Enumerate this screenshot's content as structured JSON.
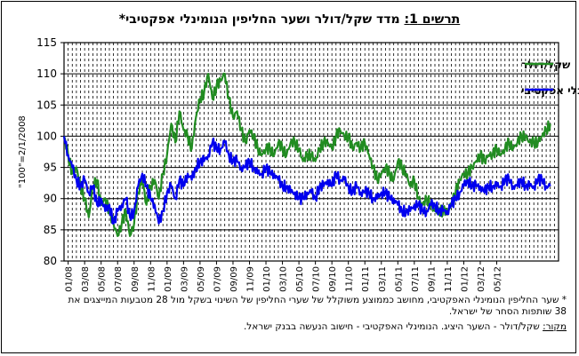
{
  "title": {
    "label": "תרשים 1:",
    "text": " מדד שקל/דולר ושער החליפין הנומינלי אפקטיבי*"
  },
  "footnote": {
    "line1": "* שער החליפין הנומינלי האפקטיבי, מחושב כממוצע משוקלל של שערי החליפין של השינוי בשקל מול 28 מטבעות המייצגים את",
    "line2": "38 שותפות הסחר של ישראל.",
    "source_label": "מקור:",
    "source_text": " שקל/דולר - השער היציג. הנומינלי האפקטיבי - חישוב הנעשה בבנק ישראל."
  },
  "colors": {
    "ils_usd": "#218c21",
    "effective": "#0000ee",
    "grid": "#000000",
    "plot_bg": "#ffffff"
  },
  "chart_data": {
    "type": "line",
    "ylabel": "\"100\"=2/1/2008",
    "ylim": [
      80,
      115
    ],
    "yticks": [
      80,
      85,
      90,
      95,
      100,
      105,
      110,
      115
    ],
    "xlim": [
      0,
      60
    ],
    "x_tick_labels": [
      "01/08",
      "03/08",
      "05/08",
      "07/08",
      "09/08",
      "11/08",
      "01/09",
      "03/09",
      "05/09",
      "07/09",
      "09/09",
      "11/09",
      "01/10",
      "03/10",
      "05/10",
      "07/10",
      "09/10",
      "11/10",
      "01/11",
      "03/11",
      "05/11",
      "07/11",
      "09/11",
      "11/11",
      "01/12",
      "03/12",
      "05/12"
    ],
    "legend_position": "top-right",
    "series": [
      {
        "name": "שקל/דולר",
        "points": [
          [
            0,
            100
          ],
          [
            0.5,
            97
          ],
          [
            1,
            94
          ],
          [
            1.5,
            95
          ],
          [
            2,
            92
          ],
          [
            2.5,
            90
          ],
          [
            3,
            87
          ],
          [
            3.5,
            92
          ],
          [
            4,
            93
          ],
          [
            4.5,
            89
          ],
          [
            5,
            90
          ],
          [
            5.5,
            88
          ],
          [
            6,
            86
          ],
          [
            6.5,
            84
          ],
          [
            7,
            86
          ],
          [
            7.5,
            88
          ],
          [
            8,
            84
          ],
          [
            8.5,
            86
          ],
          [
            9,
            91
          ],
          [
            9.5,
            93
          ],
          [
            10,
            89
          ],
          [
            10.5,
            92
          ],
          [
            11,
            93
          ],
          [
            11.5,
            90
          ],
          [
            12,
            94
          ],
          [
            12.5,
            97
          ],
          [
            13,
            102
          ],
          [
            13.5,
            99
          ],
          [
            14,
            104
          ],
          [
            14.5,
            101
          ],
          [
            15,
            100
          ],
          [
            15.5,
            98
          ],
          [
            16,
            103
          ],
          [
            16.5,
            106
          ],
          [
            17,
            107
          ],
          [
            17.5,
            110
          ],
          [
            18,
            106
          ],
          [
            18.5,
            108
          ],
          [
            19,
            109
          ],
          [
            19.5,
            110
          ],
          [
            20,
            106
          ],
          [
            20.5,
            103
          ],
          [
            21,
            104
          ],
          [
            21.5,
            101
          ],
          [
            22,
            99
          ],
          [
            22.5,
            101
          ],
          [
            23,
            100
          ],
          [
            23.5,
            98
          ],
          [
            24,
            97
          ],
          [
            24.5,
            98
          ],
          [
            25,
            98
          ],
          [
            25.5,
            97
          ],
          [
            26,
            99
          ],
          [
            26.5,
            98
          ],
          [
            27,
            97
          ],
          [
            27.5,
            99
          ],
          [
            28,
            99
          ],
          [
            28.5,
            98
          ],
          [
            29,
            96
          ],
          [
            29.5,
            97
          ],
          [
            30,
            97
          ],
          [
            30.5,
            96
          ],
          [
            31,
            98
          ],
          [
            31.5,
            99
          ],
          [
            32,
            99
          ],
          [
            32.5,
            98
          ],
          [
            33,
            100
          ],
          [
            33.5,
            101
          ],
          [
            34,
            100
          ],
          [
            34.5,
            100
          ],
          [
            35,
            98
          ],
          [
            35.5,
            99
          ],
          [
            36,
            98
          ],
          [
            36.5,
            99
          ],
          [
            37,
            97
          ],
          [
            37.5,
            95
          ],
          [
            38,
            93
          ],
          [
            38.5,
            94
          ],
          [
            39,
            95
          ],
          [
            39.5,
            94
          ],
          [
            40,
            93
          ],
          [
            40.5,
            96
          ],
          [
            41,
            95
          ],
          [
            41.5,
            94
          ],
          [
            42,
            92
          ],
          [
            42.5,
            93
          ],
          [
            43,
            90
          ],
          [
            43.5,
            89
          ],
          [
            44,
            90
          ],
          [
            44.5,
            89
          ],
          [
            45,
            88
          ],
          [
            45.5,
            88
          ],
          [
            46,
            88
          ],
          [
            46.5,
            88
          ],
          [
            47,
            89
          ],
          [
            47.5,
            91
          ],
          [
            48,
            93
          ],
          [
            48.5,
            94
          ],
          [
            49,
            94
          ],
          [
            49.5,
            95
          ],
          [
            50,
            96
          ],
          [
            50.5,
            97
          ],
          [
            51,
            96
          ],
          [
            51.5,
            97
          ],
          [
            52,
            97
          ],
          [
            52.5,
            98
          ],
          [
            53,
            97
          ],
          [
            53.5,
            98
          ],
          [
            54,
            99
          ],
          [
            54.5,
            98
          ],
          [
            55,
            99
          ],
          [
            55.5,
            100
          ],
          [
            56,
            100
          ],
          [
            56.5,
            99
          ],
          [
            57,
            99
          ],
          [
            57.5,
            99
          ],
          [
            58,
            100
          ],
          [
            58.5,
            101
          ],
          [
            59,
            102
          ]
        ]
      },
      {
        "name": "נומינלי אפקטיבי",
        "points": [
          [
            0,
            100
          ],
          [
            0.5,
            97
          ],
          [
            1,
            95
          ],
          [
            1.5,
            93
          ],
          [
            2,
            92
          ],
          [
            2.5,
            93
          ],
          [
            3,
            91
          ],
          [
            3.5,
            92
          ],
          [
            4,
            89
          ],
          [
            4.5,
            90
          ],
          [
            5,
            88
          ],
          [
            5.5,
            89
          ],
          [
            6,
            86
          ],
          [
            6.5,
            88
          ],
          [
            7,
            89
          ],
          [
            7.5,
            90
          ],
          [
            8,
            87
          ],
          [
            8.5,
            88
          ],
          [
            9,
            92
          ],
          [
            9.5,
            94
          ],
          [
            10,
            92
          ],
          [
            10.5,
            90
          ],
          [
            11,
            89
          ],
          [
            11.5,
            86
          ],
          [
            12,
            88
          ],
          [
            12.5,
            91
          ],
          [
            13,
            92
          ],
          [
            13.5,
            90
          ],
          [
            14,
            93
          ],
          [
            14.5,
            92
          ],
          [
            15,
            94
          ],
          [
            15.5,
            93
          ],
          [
            16,
            95
          ],
          [
            16.5,
            96
          ],
          [
            17,
            96
          ],
          [
            17.5,
            97
          ],
          [
            18,
            99
          ],
          [
            18.5,
            98
          ],
          [
            19,
            98
          ],
          [
            19.5,
            99
          ],
          [
            20,
            97
          ],
          [
            20.5,
            96
          ],
          [
            21,
            96
          ],
          [
            21.5,
            95
          ],
          [
            22,
            95
          ],
          [
            22.5,
            96
          ],
          [
            23,
            95
          ],
          [
            23.5,
            94
          ],
          [
            24,
            94
          ],
          [
            24.5,
            95
          ],
          [
            25,
            94
          ],
          [
            25.5,
            94
          ],
          [
            26,
            93
          ],
          [
            26.5,
            92
          ],
          [
            27,
            92
          ],
          [
            27.5,
            91
          ],
          [
            28,
            91
          ],
          [
            28.5,
            90
          ],
          [
            29,
            90
          ],
          [
            29.5,
            91
          ],
          [
            30,
            91
          ],
          [
            30.5,
            90
          ],
          [
            31,
            92
          ],
          [
            31.5,
            92
          ],
          [
            32,
            93
          ],
          [
            32.5,
            92
          ],
          [
            33,
            94
          ],
          [
            33.5,
            93
          ],
          [
            34,
            93
          ],
          [
            34.5,
            92
          ],
          [
            35,
            91
          ],
          [
            35.5,
            92
          ],
          [
            36,
            91
          ],
          [
            36.5,
            91
          ],
          [
            37,
            91
          ],
          [
            37.5,
            90
          ],
          [
            38,
            90
          ],
          [
            38.5,
            91
          ],
          [
            39,
            91
          ],
          [
            39.5,
            90
          ],
          [
            40,
            90
          ],
          [
            40.5,
            89
          ],
          [
            41,
            88
          ],
          [
            41.5,
            88
          ],
          [
            42,
            88
          ],
          [
            42.5,
            89
          ],
          [
            43,
            89
          ],
          [
            43.5,
            88
          ],
          [
            44,
            88
          ],
          [
            44.5,
            89
          ],
          [
            45,
            89
          ],
          [
            45.5,
            88
          ],
          [
            46,
            88
          ],
          [
            46.5,
            88
          ],
          [
            47,
            89
          ],
          [
            47.5,
            90
          ],
          [
            48,
            91
          ],
          [
            48.5,
            92
          ],
          [
            49,
            93
          ],
          [
            49.5,
            92
          ],
          [
            50,
            92
          ],
          [
            50.5,
            92
          ],
          [
            51,
            91
          ],
          [
            51.5,
            92
          ],
          [
            52,
            92
          ],
          [
            52.5,
            92
          ],
          [
            53,
            92
          ],
          [
            53.5,
            93
          ],
          [
            54,
            93
          ],
          [
            54.5,
            92
          ],
          [
            55,
            92
          ],
          [
            55.5,
            93
          ],
          [
            56,
            92
          ],
          [
            56.5,
            92
          ],
          [
            57,
            92
          ],
          [
            57.5,
            93
          ],
          [
            58,
            93
          ],
          [
            58.5,
            92
          ],
          [
            59,
            92
          ]
        ]
      }
    ]
  }
}
